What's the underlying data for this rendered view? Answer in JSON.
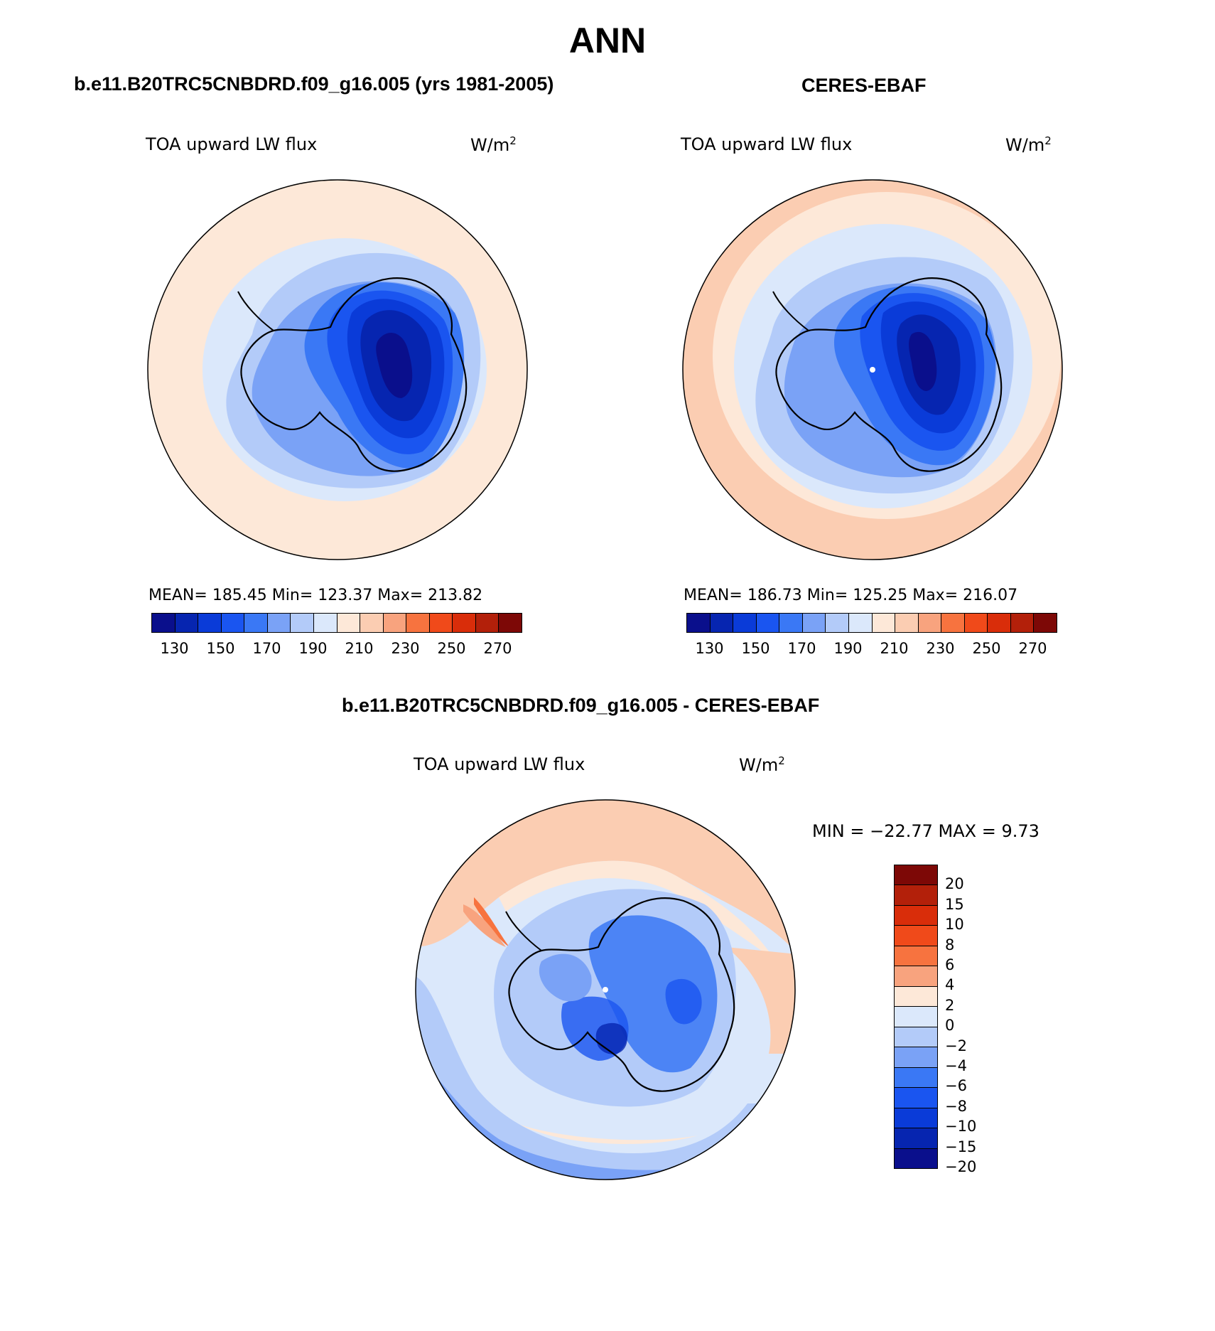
{
  "title": "ANN",
  "colors": {
    "abs_scale": [
      "#0a0f8c",
      "#0625b0",
      "#0a3bd8",
      "#1a55f0",
      "#3a78f5",
      "#7aa2f6",
      "#b3cbf9",
      "#dbe8fb",
      "#fde8d8",
      "#fbcdb2",
      "#f8a37e",
      "#f7733f",
      "#f04a1a",
      "#d92d0a",
      "#b3200a",
      "#7d0806"
    ],
    "diff_scale": [
      "#7d0806",
      "#b3200a",
      "#d92d0a",
      "#f04a1a",
      "#f7733f",
      "#f8a37e",
      "#fde8d8",
      "#dbe8fb",
      "#b3cbf9",
      "#7aa2f6",
      "#3a78f5",
      "#1a55f0",
      "#0a3bd8",
      "#0625b0",
      "#0a0f8c"
    ]
  },
  "panel_model": {
    "title": "b.e11.B20TRC5CNBDRD.f09_g16.005 (yrs 1981-2005)",
    "variable": "TOA upward LW flux",
    "units": "W/m",
    "units_sup": "2",
    "stats": "MEAN= 185.45   Min= 123.37   Max= 213.82",
    "ticks": [
      "130",
      "150",
      "170",
      "190",
      "210",
      "230",
      "250",
      "270"
    ]
  },
  "panel_obs": {
    "title": "CERES-EBAF",
    "variable": "TOA upward LW flux",
    "units": "W/m",
    "units_sup": "2",
    "stats": "MEAN= 186.73   Min= 125.25   Max= 216.07",
    "ticks": [
      "130",
      "150",
      "170",
      "190",
      "210",
      "230",
      "250",
      "270"
    ]
  },
  "panel_diff": {
    "title": "b.e11.B20TRC5CNBDRD.f09_g16.005 - CERES-EBAF",
    "variable": "TOA upward LW flux",
    "units": "W/m",
    "units_sup": "2",
    "minmax": "MIN = −22.77 MAX =    9.73",
    "ticks": [
      "20",
      "15",
      "10",
      "8",
      "6",
      "4",
      "2",
      "0",
      "−2",
      "−4",
      "−6",
      "−8",
      "−10",
      "−15",
      "−20"
    ]
  }
}
